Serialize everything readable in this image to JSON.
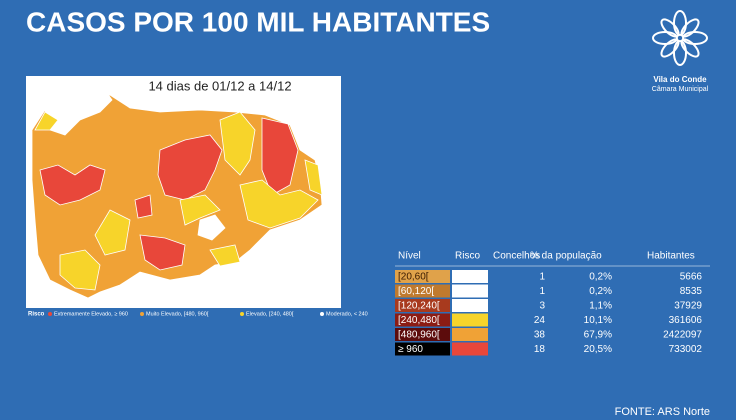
{
  "header": {
    "title": "CASOS POR 100 MIL HABITANTES",
    "subtitle": "14 dias de 01/12 a 14/12"
  },
  "logo": {
    "name": "Vila do Conde",
    "org": "Câmara Municipal"
  },
  "legend": {
    "title": "Risco",
    "items": [
      {
        "label": "Extremamente Elevado, ≥ 960",
        "color": "#e8473a"
      },
      {
        "label": "Muito Elevado, [480, 960[",
        "color": "#f0a236"
      },
      {
        "label": "Elevado, [240, 480[",
        "color": "#f7d42a"
      },
      {
        "label": "Moderado, < 240",
        "color": "#ffffff"
      }
    ]
  },
  "table": {
    "headers": [
      "Nível",
      "Risco",
      "Concelhos",
      "% da população",
      "Habitantes"
    ],
    "rows": [
      {
        "level": "[20,60[",
        "level_color": "#e0a24a",
        "level_text": "#3a1a00",
        "risk_color": "#ffffff",
        "concelhos": 1,
        "pop": "0,2%",
        "habitantes": 5666
      },
      {
        "level": "[60,120[",
        "level_color": "#c07a2e",
        "level_text": "#ffffff",
        "risk_color": "#ffffff",
        "concelhos": 1,
        "pop": "0,2%",
        "habitantes": 8535
      },
      {
        "level": "[120,240[",
        "level_color": "#a83a1e",
        "level_text": "#ffffff",
        "risk_color": "#ffffff",
        "concelhos": 3,
        "pop": "1,1%",
        "habitantes": 37929
      },
      {
        "level": "[240,480[",
        "level_color": "#8c1c14",
        "level_text": "#ffffff",
        "risk_color": "#f7d42a",
        "concelhos": 24,
        "pop": "10,1%",
        "habitantes": 361606
      },
      {
        "level": "[480,960[",
        "level_color": "#5c0c0c",
        "level_text": "#ffffff",
        "risk_color": "#f0a236",
        "concelhos": 38,
        "pop": "67,9%",
        "habitantes": 2422097
      },
      {
        "level": "≥ 960",
        "level_color": "#000000",
        "level_text": "#ffffff",
        "risk_color": "#e8473a",
        "concelhos": 18,
        "pop": "20,5%",
        "habitantes": 733002
      }
    ]
  },
  "source": "FONTE: ARS Norte"
}
